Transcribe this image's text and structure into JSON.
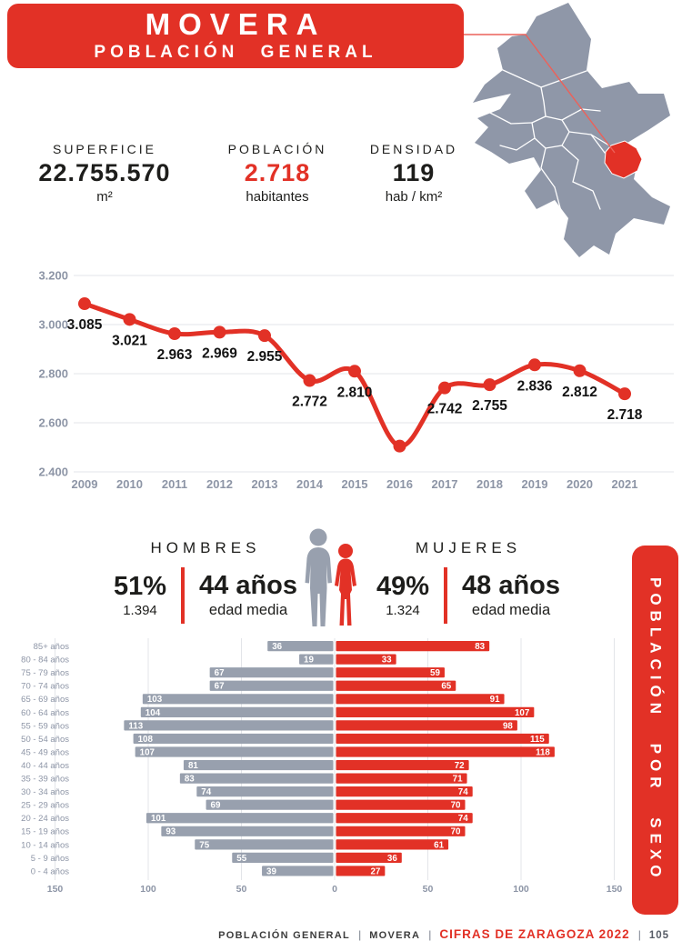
{
  "colors": {
    "red": "#e23126",
    "gray_bar": "#98a0ae",
    "map_gray": "#8f97a8",
    "axis_text": "#8d95a6",
    "grid": "#e3e5e9",
    "dark": "#1d1d1b"
  },
  "header": {
    "title": "MOVERA",
    "subtitle": "POBLACIÓN GENERAL"
  },
  "map": {
    "base_color": "#8f97a8",
    "highlight_color": "#e23126"
  },
  "stats": [
    {
      "label": "SUPERFICIE",
      "value": "22.755.570",
      "unit": "m²"
    },
    {
      "label": "POBLACIÓN",
      "value": "2.718",
      "unit": "habitantes"
    },
    {
      "label": "DENSIDAD",
      "value": "119",
      "unit": "hab / km²"
    }
  ],
  "chart_data": [
    {
      "id": "population_evolution",
      "type": "line",
      "x": [
        2009,
        2010,
        2011,
        2012,
        2013,
        2014,
        2015,
        2016,
        2017,
        2018,
        2019,
        2020,
        2021
      ],
      "values": [
        3085,
        3021,
        2963,
        2969,
        2955,
        2772,
        2810,
        2505,
        2742,
        2755,
        2836,
        2812,
        2718
      ],
      "labels": [
        "3.085",
        "3.021",
        "2.963",
        "2.969",
        "2.955",
        "2.772",
        "2.810",
        "",
        "2.742",
        "2.755",
        "2.836",
        "2.812",
        "2.718"
      ],
      "note": "2016 point shown without data label; value estimated from gridlines",
      "ylim": [
        2400,
        3200
      ],
      "yticks": [
        "3.200",
        "3.000",
        "2.800",
        "2.600",
        "2.400"
      ],
      "grid": true,
      "line_color": "#e23126"
    },
    {
      "id": "population_pyramid",
      "type": "bar",
      "orientation": "horizontal-diverging",
      "categories": [
        "85+ años",
        "80 - 84 años",
        "75 - 79 años",
        "70 - 74 años",
        "65 - 69 años",
        "60 - 64 años",
        "55 - 59 años",
        "50 - 54 años",
        "45 - 49 años",
        "40 - 44 años",
        "35 - 39 años",
        "30 - 34 años",
        "25 - 29 años",
        "20 - 24 años",
        "15 - 19 años",
        "10 - 14 años",
        "5 - 9 años",
        "0 - 4 años"
      ],
      "series": [
        {
          "name": "hombres",
          "side": "left",
          "color": "#98a0ae",
          "values": [
            36,
            19,
            67,
            67,
            103,
            104,
            113,
            108,
            107,
            81,
            83,
            74,
            69,
            101,
            93,
            75,
            55,
            39
          ]
        },
        {
          "name": "mujeres",
          "side": "right",
          "color": "#e23126",
          "values": [
            83,
            33,
            59,
            65,
            91,
            107,
            98,
            115,
            118,
            72,
            71,
            74,
            70,
            74,
            70,
            61,
            36,
            27
          ]
        }
      ],
      "xticks": [
        -150,
        -100,
        -50,
        0,
        50,
        100,
        150
      ],
      "xlim": [
        -160,
        160
      ],
      "grid": true
    }
  ],
  "sex": {
    "men": {
      "title": "HOMBRES",
      "percent": "51%",
      "count": "1.394",
      "age": "44 años",
      "age_caption": "edad media"
    },
    "women": {
      "title": "MUJERES",
      "percent": "49%",
      "count": "1.324",
      "age": "48 años",
      "age_caption": "edad media"
    }
  },
  "side_banner": {
    "text": "POBLACIÓN POR SEXO"
  },
  "footer": {
    "section": "POBLACIÓN GENERAL",
    "area": "MOVERA",
    "source": "CIFRAS DE ZARAGOZA 2022",
    "page": "105"
  }
}
